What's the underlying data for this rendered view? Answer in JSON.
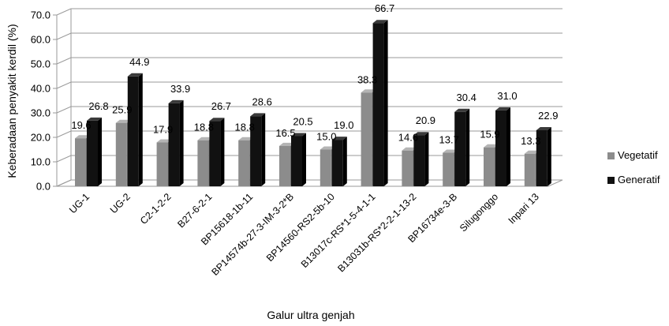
{
  "chart_data": {
    "type": "bar",
    "title": "",
    "xlabel": "Galur ultra genjah",
    "ylabel": "Keberadaan penyakit kerdil (%)",
    "ylim": [
      0,
      70
    ],
    "yticks": [
      "0.0",
      "10.0",
      "20.0",
      "30.0",
      "40.0",
      "50.0",
      "60.0",
      "70.0"
    ],
    "grid": true,
    "legend_position": "right",
    "categories": [
      "UG-1",
      "UG-2",
      "C2-1-2-2",
      "B27-6-2-1",
      "BP15618-1b-11",
      "BP14574b-27-3-IM-3-2*B",
      "BP14560-RS2-5b-10",
      "B13017c-RS*1-5-4-1-1",
      "B13031b-RS*2-2-1-13-2",
      "BP16734e-3-B",
      "Silugonggo",
      "Inpari 13"
    ],
    "series": [
      {
        "name": "Vegetatif",
        "color": "#8c8c8c",
        "values": [
          19.6,
          25.9,
          17.9,
          18.8,
          18.8,
          16.5,
          15.0,
          38.3,
          14.6,
          13.7,
          15.9,
          13.3
        ],
        "labels": [
          "19.6",
          "25.9",
          "17.9",
          "18.8",
          "18.8",
          "16.5",
          "15.0",
          "38.3",
          "14.6",
          "13.7",
          "15.9",
          "13.3"
        ]
      },
      {
        "name": "Generatif",
        "color": "#111111",
        "values": [
          26.8,
          44.9,
          33.9,
          26.7,
          28.6,
          20.5,
          19.0,
          66.7,
          20.9,
          30.4,
          31.0,
          22.9
        ],
        "labels": [
          "26.8",
          "44.9",
          "33.9",
          "26.7",
          "28.6",
          "20.5",
          "19.0",
          "66.7",
          "20.9",
          "30.4",
          "31.0",
          "22.9"
        ]
      }
    ]
  }
}
